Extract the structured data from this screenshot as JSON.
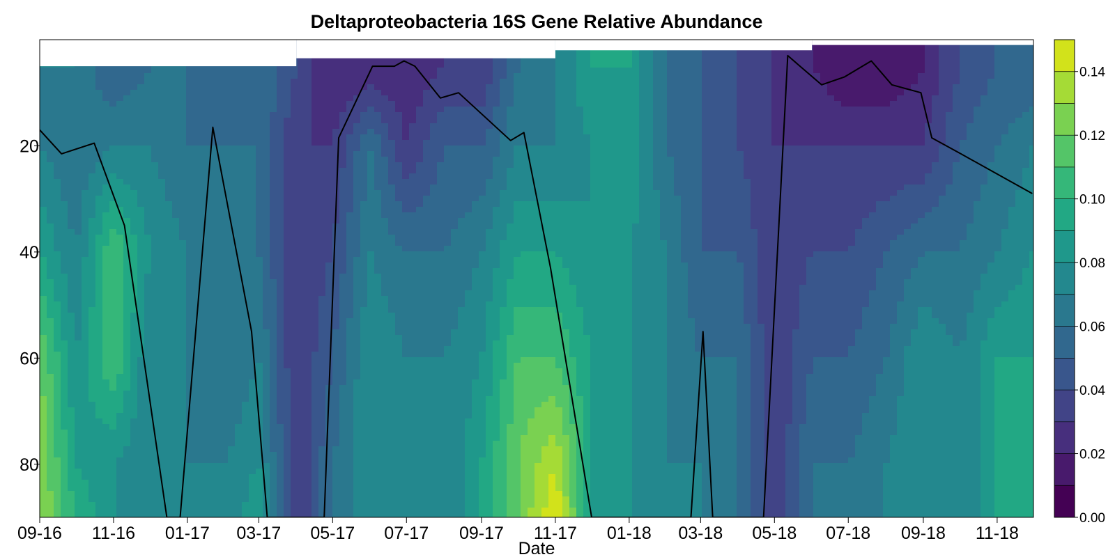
{
  "chart_data": {
    "type": "heatmap",
    "title": "Deltaproteobacteria 16S Gene Relative Abundance",
    "xlabel": "Date",
    "ylabel": "",
    "x_axis": {
      "type": "date",
      "range": [
        "2016-09-01",
        "2018-12-01"
      ],
      "ticks": [
        {
          "date": "2016-09-01",
          "label": "09-16"
        },
        {
          "date": "2016-11-01",
          "label": "11-16"
        },
        {
          "date": "2017-01-01",
          "label": "01-17"
        },
        {
          "date": "2017-03-01",
          "label": "03-17"
        },
        {
          "date": "2017-05-01",
          "label": "05-17"
        },
        {
          "date": "2017-07-01",
          "label": "07-17"
        },
        {
          "date": "2017-09-01",
          "label": "09-17"
        },
        {
          "date": "2017-11-01",
          "label": "11-17"
        },
        {
          "date": "2018-01-01",
          "label": "01-18"
        },
        {
          "date": "2018-03-01",
          "label": "03-18"
        },
        {
          "date": "2018-05-01",
          "label": "05-18"
        },
        {
          "date": "2018-07-01",
          "label": "07-18"
        },
        {
          "date": "2018-09-01",
          "label": "09-18"
        },
        {
          "date": "2018-11-01",
          "label": "11-18"
        }
      ]
    },
    "y_axis": {
      "range": [
        0,
        90
      ],
      "inverted": true,
      "ticks": [
        20,
        40,
        60,
        80
      ]
    },
    "colorbar": {
      "colormap": "viridis",
      "range": [
        0,
        0.15
      ],
      "levels": [
        0.0,
        0.01,
        0.02,
        0.03,
        0.04,
        0.05,
        0.06,
        0.07,
        0.08,
        0.09,
        0.1,
        0.11,
        0.12,
        0.13,
        0.14,
        0.15
      ],
      "tick_labels": [
        "0.00",
        "0.02",
        "0.04",
        "0.06",
        "0.08",
        "0.10",
        "0.12",
        "0.14"
      ],
      "colors": [
        "#440154",
        "#481a6c",
        "#472f7d",
        "#414487",
        "#39568c",
        "#31688e",
        "#2a788e",
        "#23888e",
        "#1f988b",
        "#22a884",
        "#35b779",
        "#54c568",
        "#7ad151",
        "#a5db36",
        "#d2e21b",
        "#fde725"
      ]
    },
    "surface_top": [
      {
        "date": "2016-09-01",
        "depth": 5
      },
      {
        "date": "2017-04-01",
        "depth": 3.5
      },
      {
        "date": "2017-11-01",
        "depth": 2
      },
      {
        "date": "2018-06-01",
        "depth": 1
      }
    ],
    "line_series": {
      "color": "#000000",
      "points": [
        {
          "date": "2016-09-01",
          "depth": 17
        },
        {
          "date": "2016-09-19",
          "depth": 21.5
        },
        {
          "date": "2016-10-16",
          "depth": 19.5
        },
        {
          "date": "2016-11-10",
          "depth": 35
        },
        {
          "date": "2016-12-15",
          "depth": 90
        },
        {
          "date": "2016-12-26",
          "depth": 90
        },
        {
          "date": "2017-01-22",
          "depth": 16.5
        },
        {
          "date": "2017-02-23",
          "depth": 55
        },
        {
          "date": "2017-03-08",
          "depth": 90
        },
        {
          "date": "2017-04-24",
          "depth": 90
        },
        {
          "date": "2017-05-06",
          "depth": 18.5
        },
        {
          "date": "2017-06-03",
          "depth": 5
        },
        {
          "date": "2017-06-21",
          "depth": 5
        },
        {
          "date": "2017-06-29",
          "depth": 4
        },
        {
          "date": "2017-07-08",
          "depth": 5
        },
        {
          "date": "2017-07-29",
          "depth": 11
        },
        {
          "date": "2017-08-13",
          "depth": 10
        },
        {
          "date": "2017-09-25",
          "depth": 19
        },
        {
          "date": "2017-10-06",
          "depth": 17.5
        },
        {
          "date": "2017-10-28",
          "depth": 43
        },
        {
          "date": "2017-12-01",
          "depth": 90
        },
        {
          "date": "2018-02-21",
          "depth": 90
        },
        {
          "date": "2018-03-03",
          "depth": 55
        },
        {
          "date": "2018-03-11",
          "depth": 90
        },
        {
          "date": "2018-04-22",
          "depth": 90
        },
        {
          "date": "2018-05-12",
          "depth": 3
        },
        {
          "date": "2018-06-09",
          "depth": 8.5
        },
        {
          "date": "2018-06-28",
          "depth": 7
        },
        {
          "date": "2018-07-20",
          "depth": 4
        },
        {
          "date": "2018-08-06",
          "depth": 8.5
        },
        {
          "date": "2018-08-30",
          "depth": 10
        },
        {
          "date": "2018-09-08",
          "depth": 18.5
        },
        {
          "date": "2018-10-02",
          "depth": 21.5
        },
        {
          "date": "2018-11-30",
          "depth": 29
        }
      ]
    },
    "profiles": [
      {
        "date": "2016-09-01",
        "depths": [
          5,
          20,
          40,
          60,
          80,
          90
        ],
        "values": [
          0.07,
          0.07,
          0.09,
          0.12,
          0.13,
          0.13
        ]
      },
      {
        "date": "2016-10-01",
        "depths": [
          5,
          20,
          40,
          60,
          80,
          90
        ],
        "values": [
          0.07,
          0.06,
          0.07,
          0.08,
          0.09,
          0.1
        ]
      },
      {
        "date": "2016-11-01",
        "depths": [
          5,
          20,
          40,
          60,
          80,
          90
        ],
        "values": [
          0.05,
          0.07,
          0.11,
          0.11,
          0.08,
          0.08
        ]
      },
      {
        "date": "2016-12-01",
        "depths": [
          5,
          20,
          40,
          60,
          80,
          90
        ],
        "values": [
          0.06,
          0.07,
          0.08,
          0.07,
          0.07,
          0.07
        ]
      },
      {
        "date": "2017-01-01",
        "depths": [
          5,
          20,
          40,
          60,
          80,
          90
        ],
        "values": [
          0.06,
          0.06,
          0.07,
          0.07,
          0.07,
          0.07
        ]
      },
      {
        "date": "2017-02-01",
        "depths": [
          5,
          20,
          40,
          60,
          80,
          90
        ],
        "values": [
          0.05,
          0.06,
          0.06,
          0.06,
          0.07,
          0.07
        ]
      },
      {
        "date": "2017-03-01",
        "depths": [
          5,
          20,
          40,
          60,
          80,
          90
        ],
        "values": [
          0.06,
          0.06,
          0.06,
          0.07,
          0.08,
          0.09
        ]
      },
      {
        "date": "2017-04-01",
        "depths": [
          5,
          20,
          40,
          60,
          80,
          90
        ],
        "values": [
          0.04,
          0.03,
          0.03,
          0.03,
          0.03,
          0.03
        ]
      },
      {
        "date": "2017-05-01",
        "depths": [
          5,
          20,
          40,
          60,
          80,
          90
        ],
        "values": [
          0.02,
          0.03,
          0.04,
          0.05,
          0.06,
          0.06
        ]
      },
      {
        "date": "2017-06-01",
        "depths": [
          5,
          20,
          40,
          60,
          80,
          90
        ],
        "values": [
          0.02,
          0.06,
          0.07,
          0.08,
          0.08,
          0.08
        ]
      },
      {
        "date": "2017-07-01",
        "depths": [
          5,
          20,
          40,
          60,
          80,
          90
        ],
        "values": [
          0.02,
          0.03,
          0.06,
          0.07,
          0.07,
          0.07
        ]
      },
      {
        "date": "2017-08-01",
        "depths": [
          5,
          20,
          40,
          60,
          80,
          90
        ],
        "values": [
          0.03,
          0.05,
          0.06,
          0.07,
          0.07,
          0.07
        ]
      },
      {
        "date": "2017-09-01",
        "depths": [
          5,
          20,
          40,
          60,
          80,
          90
        ],
        "values": [
          0.03,
          0.05,
          0.07,
          0.08,
          0.09,
          0.09
        ]
      },
      {
        "date": "2017-10-01",
        "depths": [
          5,
          20,
          40,
          60,
          80,
          90
        ],
        "values": [
          0.06,
          0.07,
          0.09,
          0.11,
          0.12,
          0.12
        ]
      },
      {
        "date": "2017-11-01",
        "depths": [
          5,
          20,
          40,
          60,
          80,
          90
        ],
        "values": [
          0.07,
          0.07,
          0.09,
          0.11,
          0.14,
          0.15
        ]
      },
      {
        "date": "2017-12-01",
        "depths": [
          5,
          20,
          40,
          60,
          80,
          90
        ],
        "values": [
          0.09,
          0.08,
          0.08,
          0.09,
          0.09,
          0.09
        ]
      },
      {
        "date": "2018-01-01",
        "depths": [
          5,
          20,
          40,
          60,
          80,
          90
        ],
        "values": [
          0.09,
          0.09,
          0.08,
          0.08,
          0.08,
          0.08
        ]
      },
      {
        "date": "2018-02-01",
        "depths": [
          5,
          20,
          40,
          60,
          80,
          90
        ],
        "values": [
          0.06,
          0.06,
          0.07,
          0.07,
          0.07,
          0.07
        ]
      },
      {
        "date": "2018-03-01",
        "depths": [
          5,
          20,
          40,
          60,
          80,
          90
        ],
        "values": [
          0.05,
          0.05,
          0.05,
          0.06,
          0.07,
          0.07
        ]
      },
      {
        "date": "2018-04-01",
        "depths": [
          5,
          20,
          40,
          60,
          80,
          90
        ],
        "values": [
          0.04,
          0.04,
          0.05,
          0.06,
          0.06,
          0.06
        ]
      },
      {
        "date": "2018-05-01",
        "depths": [
          5,
          20,
          40,
          60,
          80,
          90
        ],
        "values": [
          0.03,
          0.03,
          0.03,
          0.03,
          0.03,
          0.03
        ]
      },
      {
        "date": "2018-06-01",
        "depths": [
          5,
          20,
          40,
          60,
          80,
          90
        ],
        "values": [
          0.02,
          0.03,
          0.04,
          0.05,
          0.06,
          0.06
        ]
      },
      {
        "date": "2018-07-01",
        "depths": [
          5,
          20,
          40,
          60,
          80,
          90
        ],
        "values": [
          0.01,
          0.03,
          0.04,
          0.05,
          0.06,
          0.06
        ]
      },
      {
        "date": "2018-08-01",
        "depths": [
          5,
          20,
          40,
          60,
          80,
          90
        ],
        "values": [
          0.01,
          0.03,
          0.05,
          0.06,
          0.07,
          0.07
        ]
      },
      {
        "date": "2018-09-01",
        "depths": [
          5,
          20,
          40,
          60,
          80,
          90
        ],
        "values": [
          0.02,
          0.03,
          0.06,
          0.08,
          0.08,
          0.08
        ]
      },
      {
        "date": "2018-10-01",
        "depths": [
          5,
          20,
          40,
          60,
          80,
          90
        ],
        "values": [
          0.04,
          0.05,
          0.06,
          0.07,
          0.07,
          0.07
        ]
      },
      {
        "date": "2018-11-01",
        "depths": [
          5,
          20,
          40,
          60,
          80,
          90
        ],
        "values": [
          0.05,
          0.06,
          0.07,
          0.09,
          0.09,
          0.09
        ]
      },
      {
        "date": "2018-12-01",
        "depths": [
          5,
          20,
          40,
          60,
          80,
          90
        ],
        "values": [
          0.05,
          0.07,
          0.08,
          0.09,
          0.09,
          0.09
        ]
      }
    ]
  }
}
